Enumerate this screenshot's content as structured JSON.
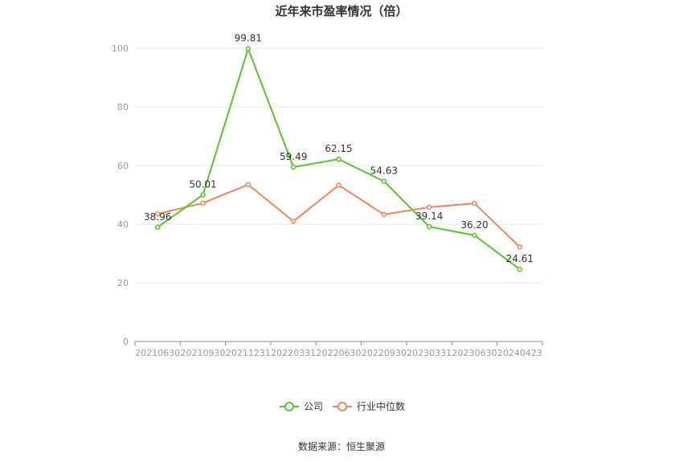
{
  "chart_data": {
    "type": "line",
    "title": "近年来市盈率情况（倍）",
    "categories": [
      "20210630",
      "20210930",
      "20211231",
      "20220331",
      "20220630",
      "20220930",
      "20230331",
      "20230630",
      "20240423"
    ],
    "series": [
      {
        "name": "公司",
        "color": "#5ac428",
        "values": [
          38.96,
          50.01,
          99.81,
          59.49,
          62.15,
          54.63,
          39.14,
          36.2,
          24.61
        ],
        "labels": [
          "38.96",
          "50.01",
          "99.81",
          "59.49",
          "62.15",
          "54.63",
          "39.14",
          "36.20",
          "24.61"
        ]
      },
      {
        "name": "行业中位数",
        "color": "#f0875a",
        "values": [
          43.5,
          47.2,
          53.5,
          41.0,
          53.3,
          43.3,
          45.8,
          47.1,
          32.2
        ]
      }
    ],
    "ylim": [
      0,
      100
    ],
    "yticks": [
      0,
      20,
      40,
      60,
      80,
      100
    ],
    "grid": true,
    "legend_position": "bottom"
  },
  "source": "数据来源：恒生聚源"
}
